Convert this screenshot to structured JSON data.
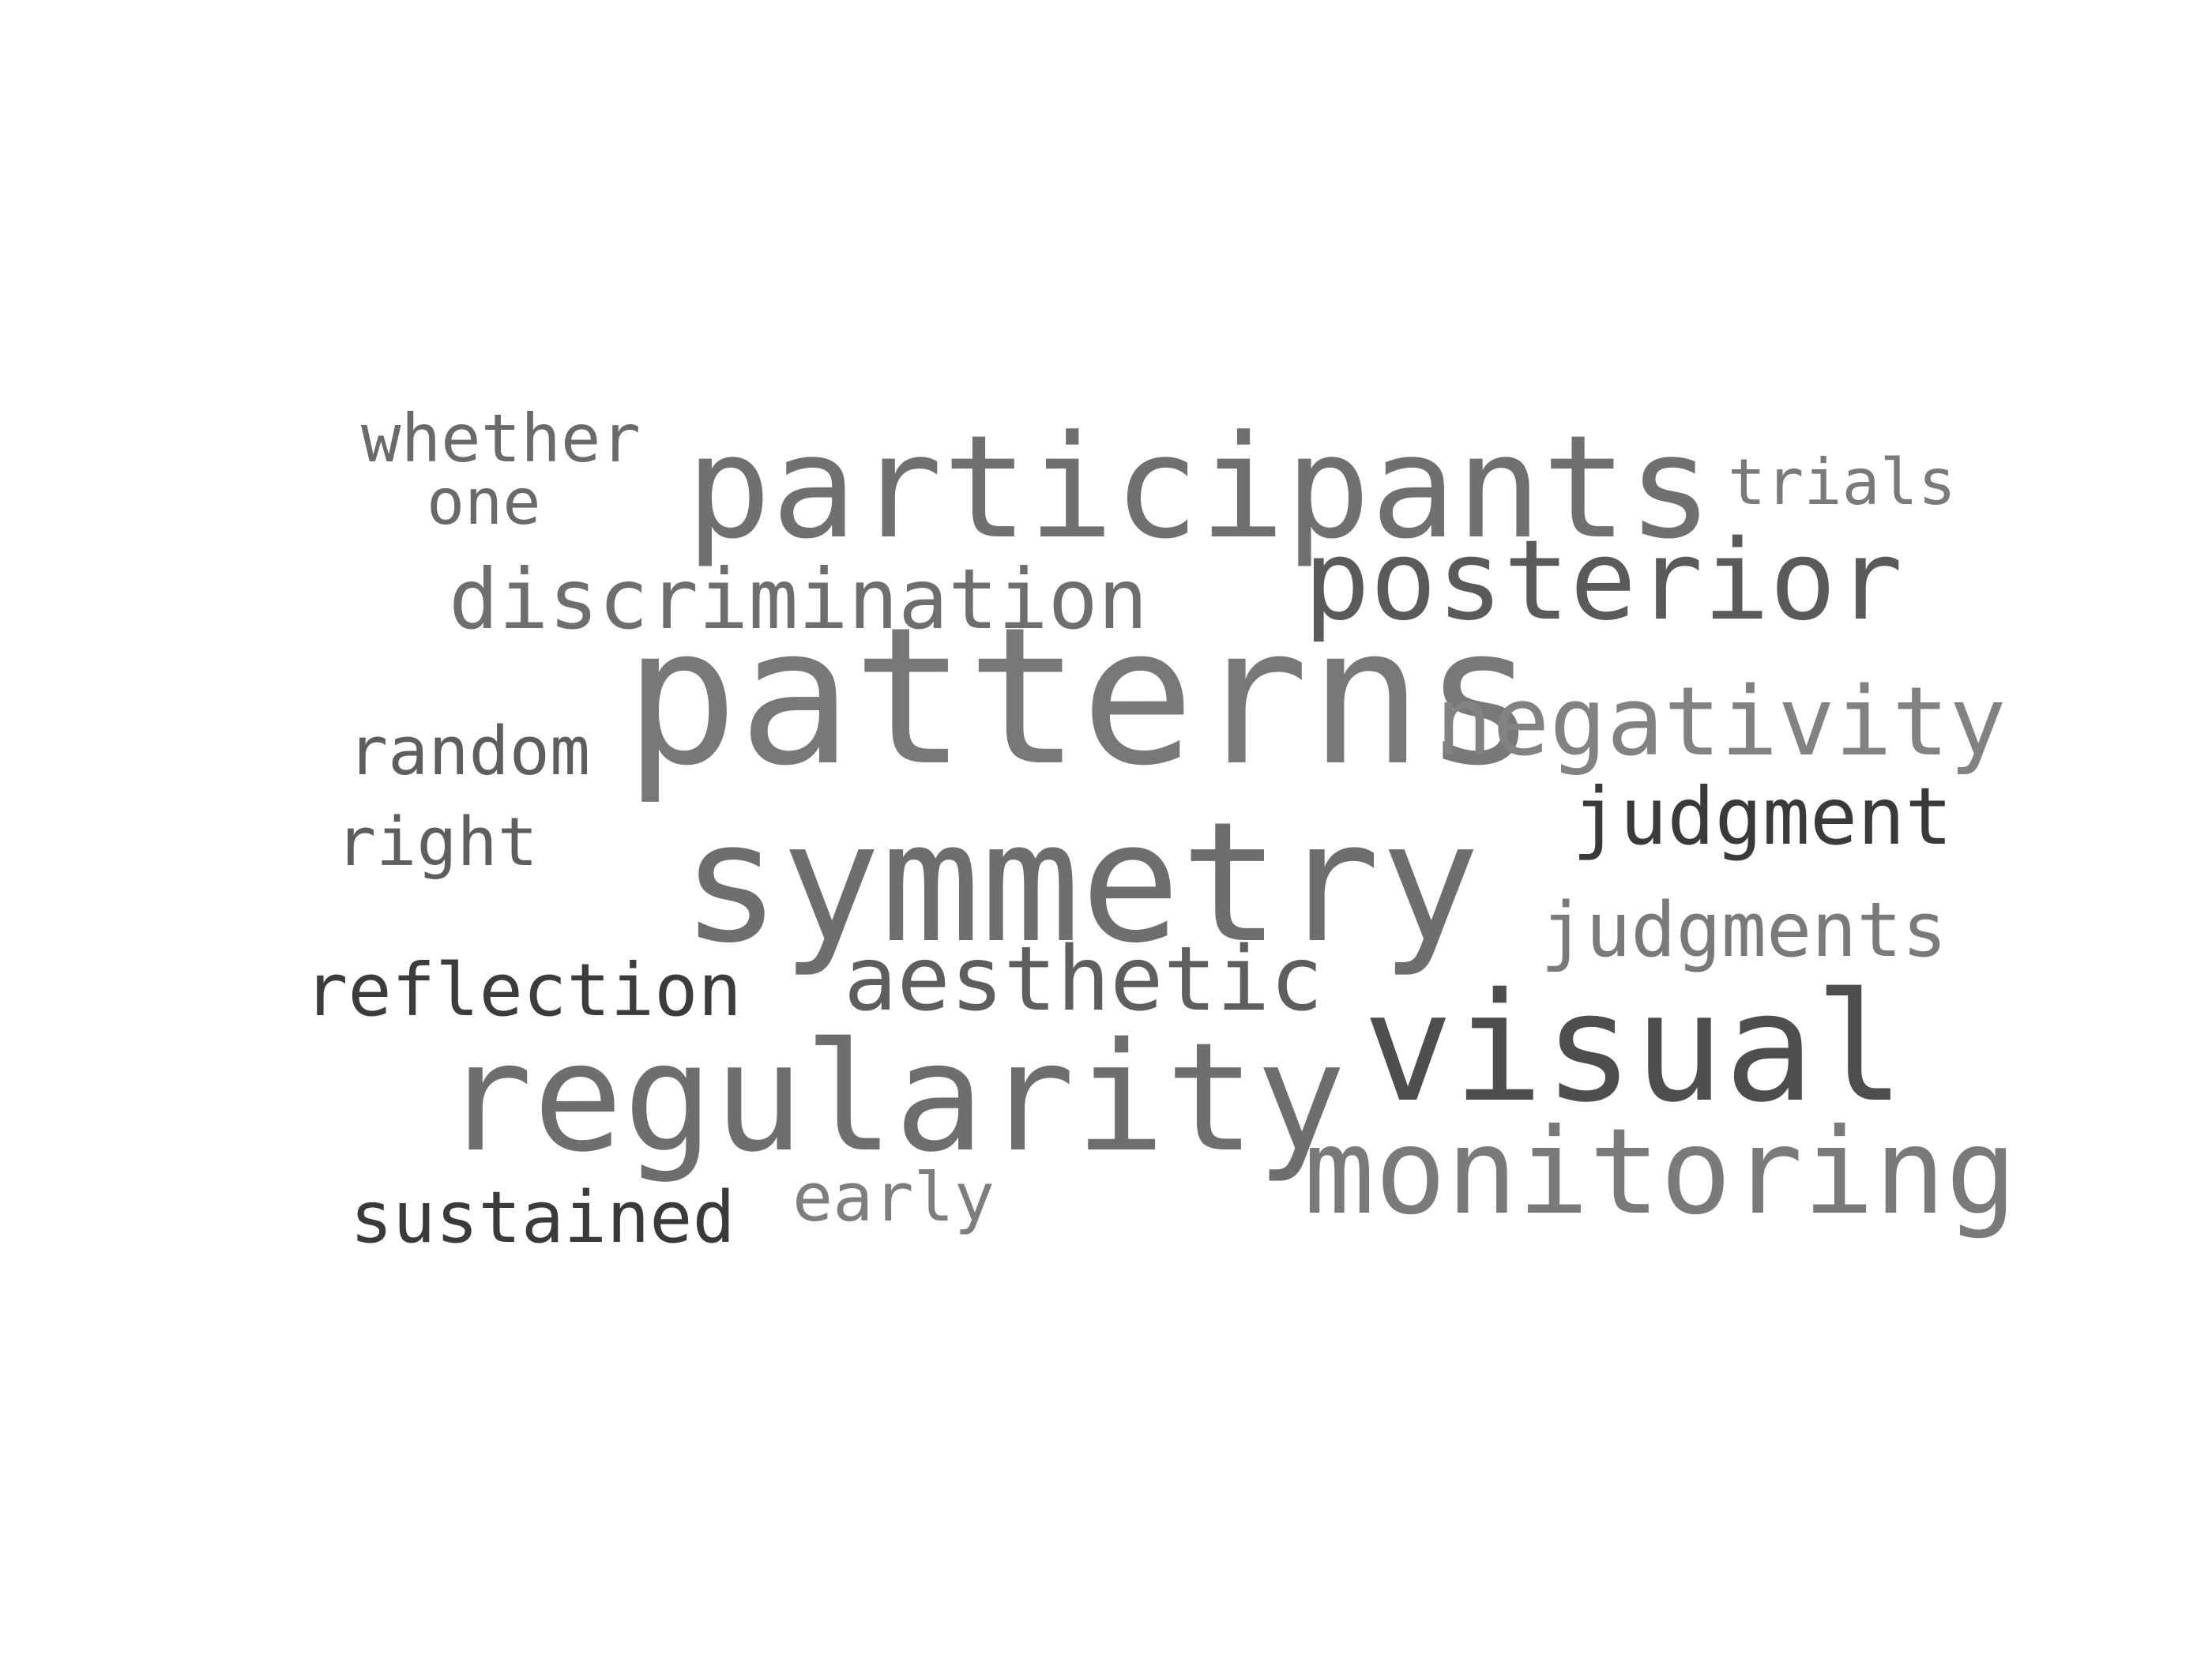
{
  "words": [
    {
      "id": "participants",
      "text": "participants",
      "color": "#707070"
    },
    {
      "id": "whether",
      "text": "whether",
      "color": "#6a6a6a"
    },
    {
      "id": "one",
      "text": "one",
      "color": "#6a6a6a"
    },
    {
      "id": "trials",
      "text": "trials",
      "color": "#7a7a7a"
    },
    {
      "id": "discrimination",
      "text": "discrimination",
      "color": "#6e6e6e"
    },
    {
      "id": "posterior",
      "text": "posterior",
      "color": "#5a5a5a"
    },
    {
      "id": "patterns",
      "text": "patterns",
      "color": "#787878"
    },
    {
      "id": "negativity",
      "text": "negativity",
      "color": "#828282"
    },
    {
      "id": "random",
      "text": "random",
      "color": "#5e5e5e"
    },
    {
      "id": "judgment",
      "text": "judgment",
      "color": "#3a3a3a"
    },
    {
      "id": "right",
      "text": "right",
      "color": "#5e5e5e"
    },
    {
      "id": "symmetry",
      "text": "symmetry",
      "color": "#6e6e6e"
    },
    {
      "id": "judgments",
      "text": "judgments",
      "color": "#7a7a7a"
    },
    {
      "id": "reflection",
      "text": "reflection",
      "color": "#3c3c3c"
    },
    {
      "id": "aesthetic",
      "text": "aesthetic",
      "color": "#5e5e5e"
    },
    {
      "id": "visual",
      "text": "visual",
      "color": "#4e4e4e"
    },
    {
      "id": "regularity",
      "text": "regularity",
      "color": "#6e6e6e"
    },
    {
      "id": "monitoring",
      "text": "monitoring",
      "color": "#7a7a7a"
    },
    {
      "id": "sustained",
      "text": "sustained",
      "color": "#3a3a3a"
    },
    {
      "id": "early",
      "text": "early",
      "color": "#7e7e7e"
    }
  ]
}
